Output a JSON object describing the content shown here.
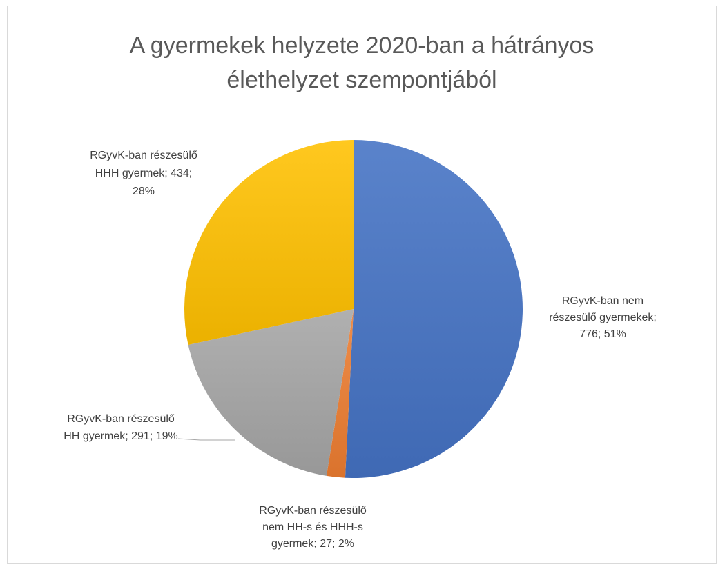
{
  "chart_data": {
    "type": "pie",
    "title_lines": [
      "A gyermekek helyzete 2020-ban a  hátrányos",
      "élethelyzet szempontjából"
    ],
    "slices": [
      {
        "label": "RGyvK-ban nem részesülő gyermekek",
        "value": 776,
        "percent": "51%",
        "color": "#4472c4",
        "label_lines": [
          "RGyvK-ban nem",
          "részesülő gyermekek;",
          "776; 51%"
        ]
      },
      {
        "label": "RGyvK-ban részesülő nem HH-s és HHH-s gyermek",
        "value": 27,
        "percent": "2%",
        "color": "#ed7d31",
        "label_lines": [
          "RGyvK-ban részesülő",
          "nem HH-s és HHH-s",
          "gyermek; 27; 2%"
        ]
      },
      {
        "label": "RGyvK-ban részesülő HH gyermek",
        "value": 291,
        "percent": "19%",
        "color": "#a5a5a5",
        "label_lines": [
          "RGyvK-ban részesülő",
          "HH gyermek; 291; 19%"
        ]
      },
      {
        "label": "RGyvK-ban részesülő HHH gyermek",
        "value": 434,
        "percent": "28%",
        "color": "#ffc000",
        "label_lines": [
          "RGyvK-ban részesülő",
          "HHH gyermek; 434;",
          "28%"
        ]
      }
    ],
    "start_angle_deg": 0,
    "direction": "clockwise",
    "legend": "none"
  }
}
